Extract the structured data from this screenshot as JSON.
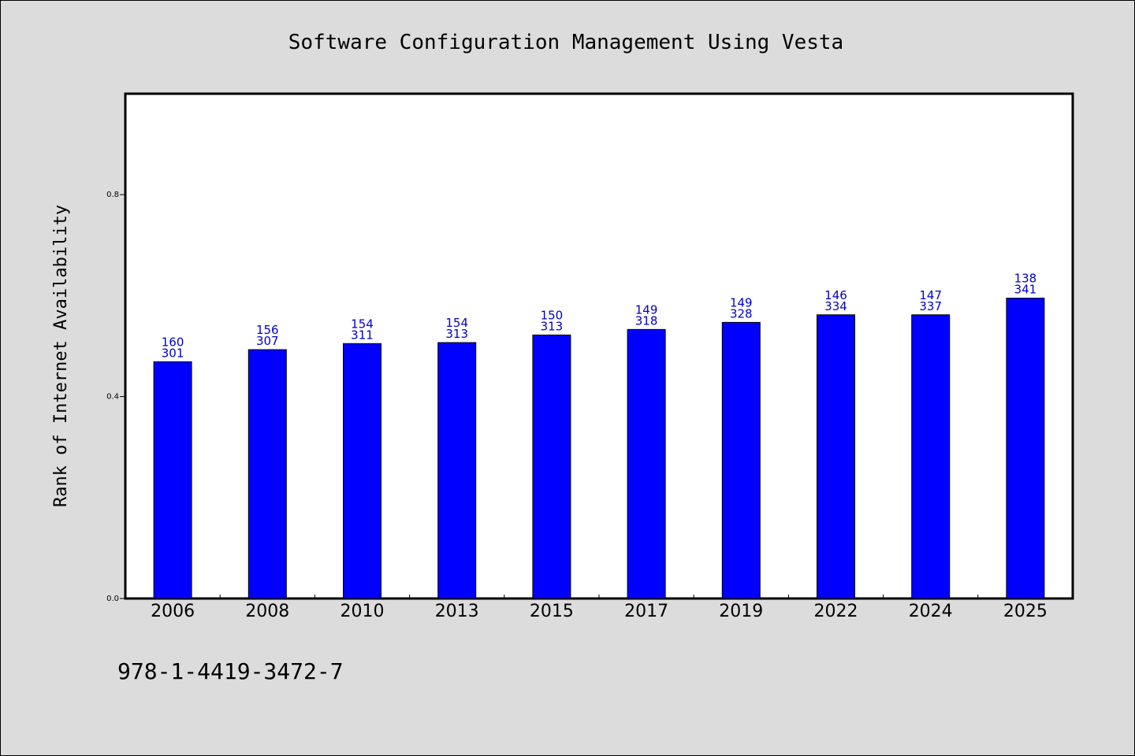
{
  "chart_data": {
    "type": "bar",
    "title": "Software Configuration Management Using Vesta",
    "xlabel": "",
    "ylabel": "Rank of Internet Availability",
    "ylim": [
      0,
      1.0
    ],
    "yticks": [
      "0.0",
      "0.4",
      "0.8"
    ],
    "ytick_values": [
      0.0,
      0.4,
      0.8
    ],
    "categories": [
      "2006",
      "2008",
      "2010",
      "2013",
      "2015",
      "2017",
      "2019",
      "2022",
      "2024",
      "2025"
    ],
    "values": [
      0.469,
      0.493,
      0.505,
      0.507,
      0.522,
      0.533,
      0.547,
      0.562,
      0.562,
      0.595
    ],
    "labels_top": [
      "160",
      "156",
      "154",
      "154",
      "150",
      "149",
      "149",
      "146",
      "147",
      "138"
    ],
    "labels_bottom": [
      "301",
      "307",
      "311",
      "313",
      "313",
      "318",
      "328",
      "334",
      "337",
      "341"
    ],
    "bar_color": "#0000ff",
    "label_color": "#0000cc",
    "grid": false,
    "legend": "none"
  },
  "footnote": "978-1-4419-3472-7"
}
